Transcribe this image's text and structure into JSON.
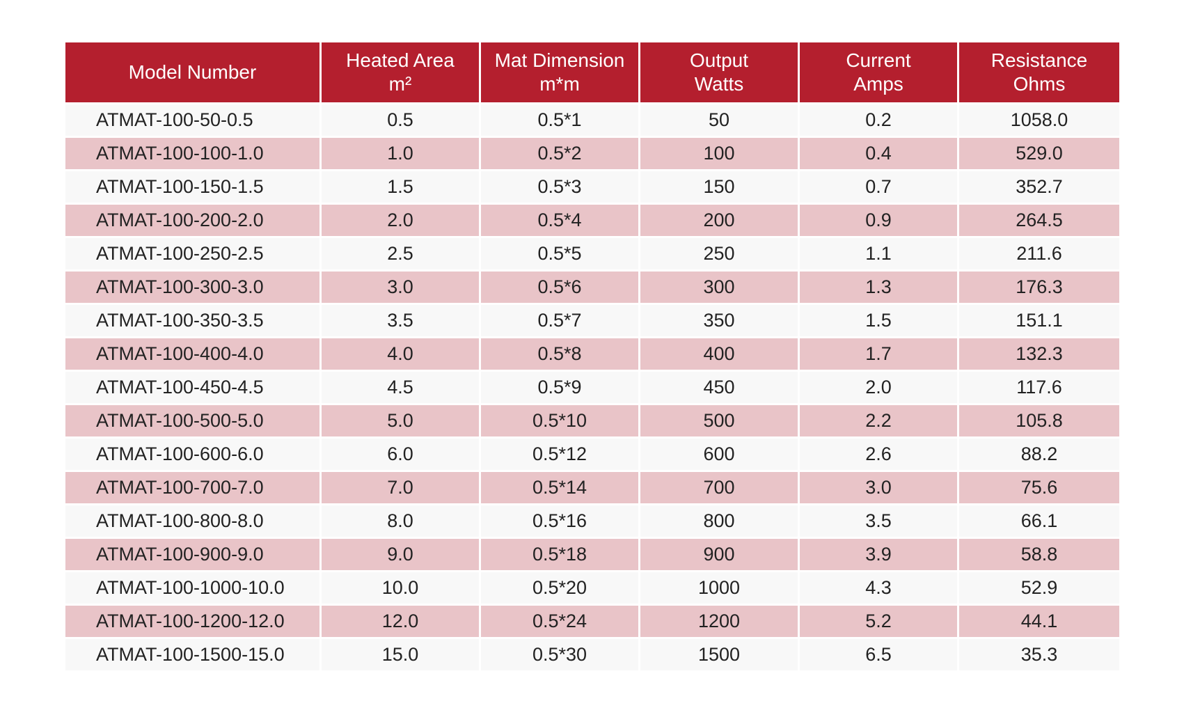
{
  "table": {
    "headers": [
      [
        "Model Number"
      ],
      [
        "Heated Area",
        "m²"
      ],
      [
        "Mat Dimension",
        "m*m"
      ],
      [
        "Output",
        "Watts"
      ],
      [
        "Current",
        "Amps"
      ],
      [
        "Resistance",
        "Ohms"
      ]
    ],
    "rows": [
      [
        "ATMAT-100-50-0.5",
        "0.5",
        "0.5*1",
        "50",
        "0.2",
        "1058.0"
      ],
      [
        "ATMAT-100-100-1.0",
        "1.0",
        "0.5*2",
        "100",
        "0.4",
        "529.0"
      ],
      [
        "ATMAT-100-150-1.5",
        "1.5",
        "0.5*3",
        "150",
        "0.7",
        "352.7"
      ],
      [
        "ATMAT-100-200-2.0",
        "2.0",
        "0.5*4",
        "200",
        "0.9",
        "264.5"
      ],
      [
        "ATMAT-100-250-2.5",
        "2.5",
        "0.5*5",
        "250",
        "1.1",
        "211.6"
      ],
      [
        "ATMAT-100-300-3.0",
        "3.0",
        "0.5*6",
        "300",
        "1.3",
        "176.3"
      ],
      [
        "ATMAT-100-350-3.5",
        "3.5",
        "0.5*7",
        "350",
        "1.5",
        "151.1"
      ],
      [
        "ATMAT-100-400-4.0",
        "4.0",
        "0.5*8",
        "400",
        "1.7",
        "132.3"
      ],
      [
        "ATMAT-100-450-4.5",
        "4.5",
        "0.5*9",
        "450",
        "2.0",
        "117.6"
      ],
      [
        "ATMAT-100-500-5.0",
        "5.0",
        "0.5*10",
        "500",
        "2.2",
        "105.8"
      ],
      [
        "ATMAT-100-600-6.0",
        "6.0",
        "0.5*12",
        "600",
        "2.6",
        "88.2"
      ],
      [
        "ATMAT-100-700-7.0",
        "7.0",
        "0.5*14",
        "700",
        "3.0",
        "75.6"
      ],
      [
        "ATMAT-100-800-8.0",
        "8.0",
        "0.5*16",
        "800",
        "3.5",
        "66.1"
      ],
      [
        "ATMAT-100-900-9.0",
        "9.0",
        "0.5*18",
        "900",
        "3.9",
        "58.8"
      ],
      [
        "ATMAT-100-1000-10.0",
        "10.0",
        "0.5*20",
        "1000",
        "4.3",
        "52.9"
      ],
      [
        "ATMAT-100-1200-12.0",
        "12.0",
        "0.5*24",
        "1200",
        "5.2",
        "44.1"
      ],
      [
        "ATMAT-100-1500-15.0",
        "15.0",
        "0.5*30",
        "1500",
        "6.5",
        "35.3"
      ]
    ]
  },
  "colors": {
    "header_background": "#b41f2e",
    "header_text": "#ffffff",
    "row_light": "#f8f8f8",
    "row_tinted": "#e9c4c8",
    "cell_text": "#222222"
  }
}
